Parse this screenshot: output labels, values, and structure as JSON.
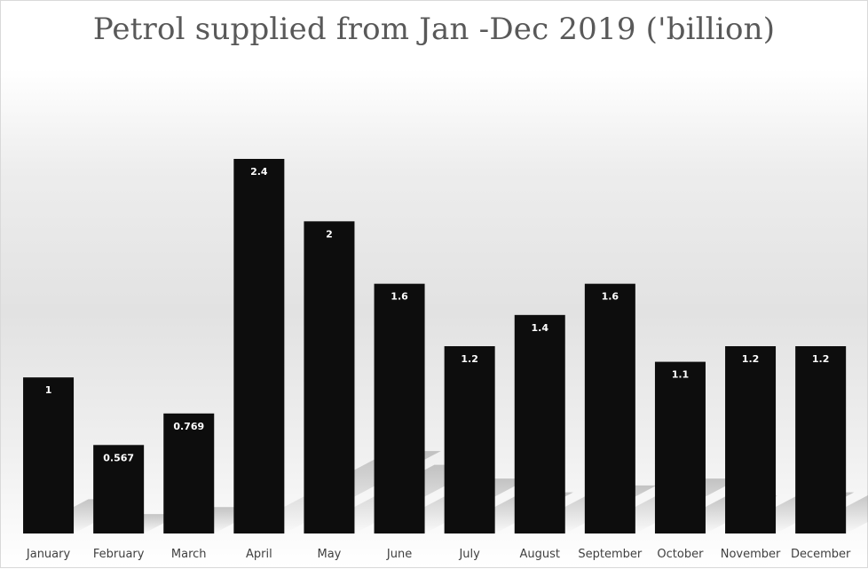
{
  "chart_data": {
    "type": "bar",
    "title": "Petrol supplied from Jan -Dec 2019 ('billion)",
    "categories": [
      "January",
      "February",
      "March",
      "April",
      "May",
      "June",
      "July",
      "August",
      "September",
      "October",
      "November",
      "December"
    ],
    "values": [
      1,
      0.567,
      0.769,
      2.4,
      2,
      1.6,
      1.2,
      1.4,
      1.6,
      1.1,
      1.2,
      1.2
    ],
    "data_labels": [
      "1",
      "0.567",
      "0.769",
      "2.4",
      "2",
      "1.6",
      "1.2",
      "1.4",
      "1.6",
      "1.1",
      "1.2",
      "1.2"
    ],
    "xlabel": "",
    "ylabel": "",
    "ylim": [
      0,
      2.4
    ],
    "grid": false,
    "legend": "none",
    "bar_color": "#0d0d0d",
    "data_label_color": "#ffffff",
    "axis_label_color": "#404040",
    "title_color": "#595959"
  }
}
